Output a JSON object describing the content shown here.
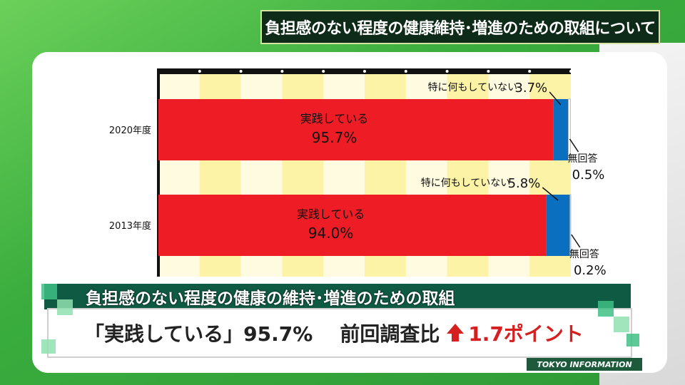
{
  "header": {
    "title": "負担感のない程度の健康維持･増進のための取組について"
  },
  "chart_data": {
    "type": "bar",
    "orientation": "horizontal-stacked",
    "categories": [
      "2020年度",
      "2013年度"
    ],
    "series": [
      {
        "name": "実践している",
        "values": [
          95.7,
          94.0
        ],
        "color": "#ee1c24"
      },
      {
        "name": "特に何もしていない",
        "values": [
          3.7,
          5.8
        ],
        "color": "#0b6fbf"
      },
      {
        "name": "無回答",
        "values": [
          0.5,
          0.2
        ],
        "color": "#ffffff"
      }
    ],
    "labels": {
      "practicing": "実践している",
      "nothing": "特に何もしていない",
      "no_answer": "無回答",
      "v2020_practicing": "95.7%",
      "v2020_nothing": "3.7%",
      "v2020_noanswer": "0.5%",
      "v2013_practicing": "94.0%",
      "v2013_nothing": "5.8%",
      "v2013_noanswer": "0.2%"
    },
    "xlim": [
      0,
      100
    ],
    "grid": true
  },
  "lower_third": {
    "heading": "負担感のない程度の健康の維持･増進のための取組",
    "caption_main": "「実践している」95.7%",
    "caption_compare": "前回調査比",
    "caption_change": "1.7ポイント"
  },
  "branding": {
    "label": "TOKYO INFORMATION"
  }
}
